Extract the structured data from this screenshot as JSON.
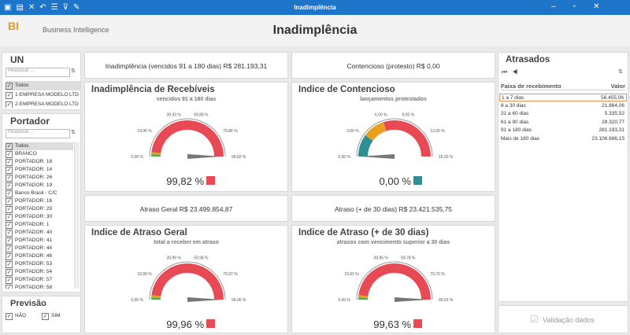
{
  "window": {
    "title": "Inadimplência"
  },
  "header": {
    "logo": "BI",
    "subtitle": "Business Intelligence",
    "title": "Inadimplência"
  },
  "filters": [
    {
      "title": "UN",
      "search": "Pesquisar ...",
      "items": [
        "Todos",
        "1-EMPRESA MODELO LTD",
        "2-EMPRESA MODELO LTD"
      ]
    },
    {
      "title": "Portador",
      "search": "Pesquisar ...",
      "items": [
        "Todos",
        "BRANCO",
        "PORTADOR: 18",
        "PORTADOR: 14",
        "PORTADOR: 26",
        "PORTADOR: 19",
        "Banco Brasil - C/C",
        "PORTADOR: 16",
        "PORTADOR: 29",
        "PORTADOR: 30",
        "PORTADOR: 1",
        "PORTADOR: 40",
        "PORTADOR: 41",
        "PORTADOR: 44",
        "PORTADOR: 46",
        "PORTADOR: 53",
        "PORTADOR: 54",
        "PORTADOR: 57",
        "PORTADOR: 58"
      ]
    }
  ],
  "previsao": {
    "title": "Previsão",
    "options": [
      "NÃO",
      "SIM"
    ]
  },
  "kpis": [
    "Inadimplência (vencidos 91 a 180 dias) R$ 281.193,31",
    "Contencioso (protesto) R$ 0,00",
    "Atraso Geral R$ 23.499.854,87",
    "Atraso (+ de 30 dias) R$ 23.421.535,75"
  ],
  "gauges": [
    {
      "title": "Inadimplência de Recebíveis",
      "subtitle": "vencidos 91 a 180 dias",
      "value": "99,82 %",
      "labels": [
        "0,00 %",
        "19,96 %",
        "39,93 %",
        "59,89 %",
        "79,86 %",
        "99,82 %"
      ]
    },
    {
      "title": "Indice de Contencioso",
      "subtitle": "lançamentos protestados",
      "value": "0,00 %",
      "labels": [
        "0,00 %",
        "3,00 %",
        "6,00 %",
        "9,00 %",
        "12,00 %",
        "15,00 %"
      ]
    },
    {
      "title": "Indice de Atraso Geral",
      "subtitle": "total a receber em atraso",
      "value": "99,96 %",
      "labels": [
        "0,00 %",
        "19,99 %",
        "39,99 %",
        "59,98 %",
        "79,97 %",
        "99,96 %"
      ]
    },
    {
      "title": "Indice de Atraso (+ de 30 dias)",
      "subtitle": "atrasos com vencimento superior a 30 dias",
      "value": "99,63 %",
      "labels": [
        "0,00 %",
        "19,93 %",
        "39,85 %",
        "59,78 %",
        "79,70 %",
        "99,63 %"
      ]
    }
  ],
  "atrasados": {
    "title": "Atrasados",
    "columns": [
      "Faixa de recebimento",
      "Valor"
    ],
    "rows": [
      [
        "1 a 7 dias",
        "56.455,06"
      ],
      [
        "8 a 30 dias",
        "21.864,06"
      ],
      [
        "31 a 60 dias",
        "5.335,52"
      ],
      [
        "61 a 90 dias",
        "28.320,77"
      ],
      [
        "91 a 180 dias",
        "281.193,31"
      ],
      [
        "Mais de 180 dias",
        "23.106.686,15"
      ]
    ]
  },
  "validation": "Validação dados"
}
